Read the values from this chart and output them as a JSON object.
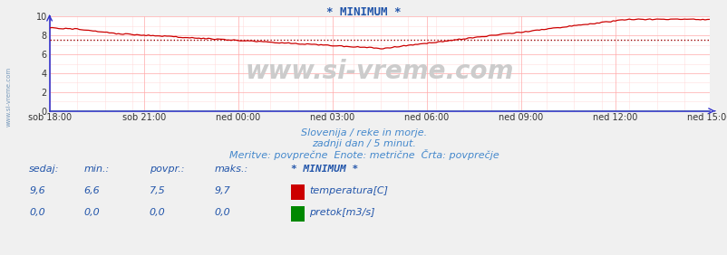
{
  "title": "* MINIMUM *",
  "title_color": "#2255aa",
  "background_color": "#f0f0f0",
  "plot_bg_color": "#ffffff",
  "grid_color_major": "#ffaaaa",
  "grid_color_minor": "#ffdddd",
  "x_labels": [
    "sob 18:00",
    "sob 21:00",
    "ned 00:00",
    "ned 03:00",
    "ned 06:00",
    "ned 09:00",
    "ned 12:00",
    "ned 15:00"
  ],
  "x_ticks_norm": [
    0,
    0.142857,
    0.285714,
    0.428571,
    0.571429,
    0.714286,
    0.857143,
    1.0
  ],
  "total_points": 288,
  "ylim": [
    0,
    10
  ],
  "yticks": [
    0,
    2,
    4,
    6,
    8,
    10
  ],
  "avg_line_value": 7.5,
  "avg_line_color": "#990000",
  "temp_line_color": "#cc0000",
  "pretok_line_color": "#008800",
  "watermark_text": "www.si-vreme.com",
  "watermark_color": "#bbbbbb",
  "subtitle1": "Slovenija / reke in morje.",
  "subtitle2": "zadnji dan / 5 minut.",
  "subtitle3": "Meritve: povprečne  Enote: metrične  Črta: povprečje",
  "subtitle_color": "#4488cc",
  "table_color": "#2255aa",
  "sedaj": "9,6",
  "min_val": "6,6",
  "povpr": "7,5",
  "maks": "9,7",
  "series_name": "* MINIMUM *",
  "label1": "temperatura[C]",
  "label2": "pretok[m3/s]",
  "sedaj2": "0,0",
  "min2": "0,0",
  "povpr2": "0,0",
  "maks2": "0,0",
  "axis_color": "#3333cc",
  "left_watermark": "www.si-vreme.com"
}
